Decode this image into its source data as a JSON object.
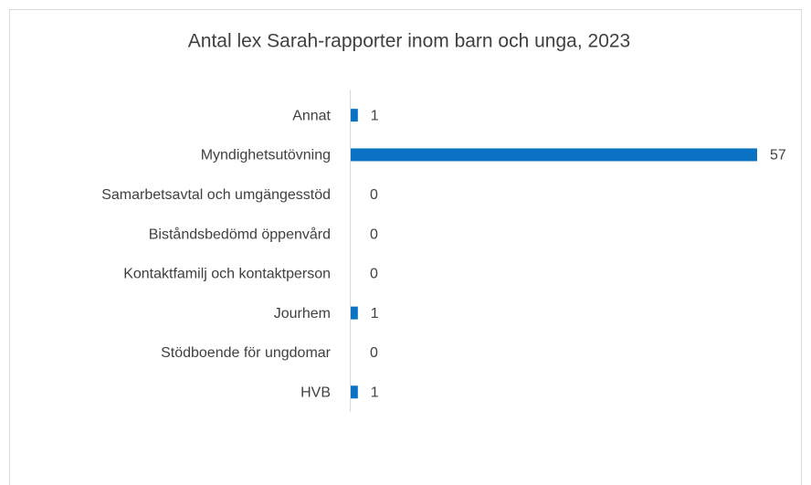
{
  "chart_data": {
    "type": "bar",
    "orientation": "horizontal",
    "title": "Antal lex Sarah-rapporter inom barn och unga, 2023",
    "categories": [
      "Annat",
      "Myndighetsutövning",
      "Samarbetsavtal och umgängesstöd",
      "Biståndsbedömd öppenvård",
      "Kontaktfamilj och kontaktperson",
      "Jourhem",
      "Stödboende för ungdomar",
      "HVB"
    ],
    "values": [
      1,
      57,
      0,
      0,
      0,
      1,
      0,
      1
    ],
    "color": "#0a72c2"
  }
}
